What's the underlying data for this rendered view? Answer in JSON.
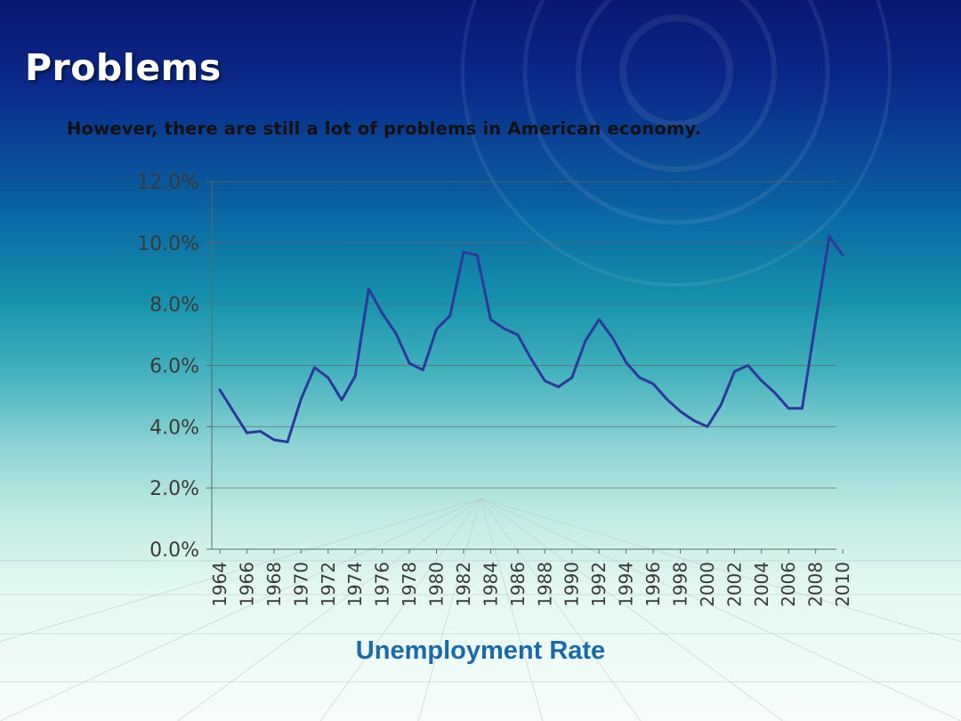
{
  "slide": {
    "title": "Problems",
    "subtitle": "However, there are still a lot of problems in American economy.",
    "caption": "Unemployment Rate"
  },
  "colors": {
    "line": "#2b3a9a",
    "gridline": "#5a6a6a",
    "caption": "#1a6aa8"
  },
  "chart_data": {
    "type": "line",
    "title": "",
    "xlabel": "",
    "ylabel": "",
    "ylim": [
      0,
      0.12
    ],
    "y_tick_labels": [
      "0.0%",
      "2.0%",
      "4.0%",
      "6.0%",
      "8.0%",
      "10.0%",
      "12.0%"
    ],
    "x_tick_labels": [
      "1964",
      "1966",
      "1968",
      "1970",
      "1972",
      "1974",
      "1976",
      "1978",
      "1980",
      "1982",
      "1984",
      "1986",
      "1988",
      "1990",
      "1992",
      "1994",
      "1996",
      "1998",
      "2000",
      "2002",
      "2004",
      "2006",
      "2008",
      "2010"
    ],
    "grid": true,
    "legend": "none",
    "x": [
      1964,
      1965,
      1966,
      1967,
      1968,
      1969,
      1970,
      1971,
      1972,
      1973,
      1974,
      1975,
      1976,
      1977,
      1978,
      1979,
      1980,
      1981,
      1982,
      1983,
      1984,
      1985,
      1986,
      1987,
      1988,
      1989,
      1990,
      1991,
      1992,
      1993,
      1994,
      1995,
      1996,
      1997,
      1998,
      1999,
      2000,
      2001,
      2002,
      2003,
      2004,
      2005,
      2006,
      2007,
      2008,
      2009,
      2010
    ],
    "series": [
      {
        "values": [
          0.052,
          0.045,
          0.038,
          0.0385,
          0.0357,
          0.035,
          0.049,
          0.0593,
          0.056,
          0.0487,
          0.0565,
          0.085,
          0.077,
          0.0705,
          0.0607,
          0.0585,
          0.0718,
          0.0762,
          0.097,
          0.096,
          0.075,
          0.072,
          0.07,
          0.062,
          0.055,
          0.053,
          0.056,
          0.068,
          0.075,
          0.069,
          0.061,
          0.056,
          0.054,
          0.049,
          0.045,
          0.042,
          0.04,
          0.047,
          0.058,
          0.06,
          0.055,
          0.051,
          0.046,
          0.046,
          0.0745,
          0.102,
          0.096
        ]
      }
    ]
  }
}
